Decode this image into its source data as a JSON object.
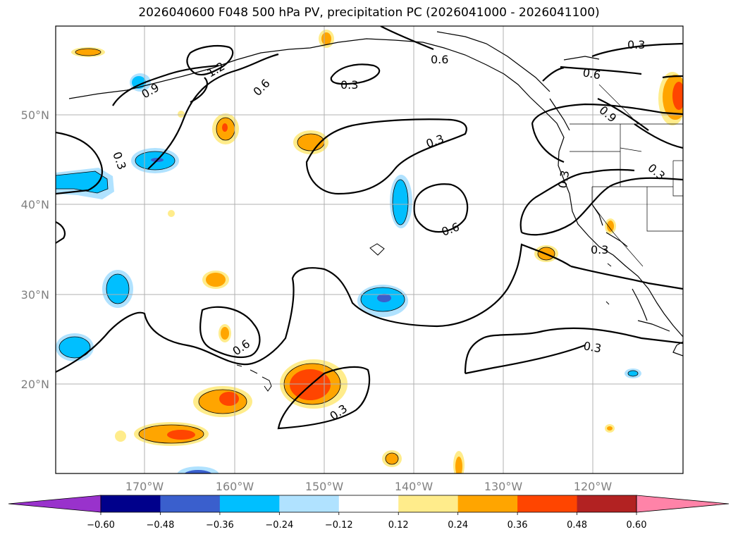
{
  "title": "2026040600 F048 500 hPa PV, precipitation PC (2026041000 - 2026041100)",
  "lon_labels": [
    "170°W",
    "160°W",
    "150°W",
    "140°W",
    "130°W",
    "120°W"
  ],
  "lat_labels": [
    "50°N",
    "40°N",
    "30°N",
    "20°N"
  ],
  "contour_labels": [
    "0.3",
    "0.6",
    "0.9",
    "1.2"
  ],
  "colorbar": {
    "ticks": [
      "−0.60",
      "−0.48",
      "−0.36",
      "−0.24",
      "−0.12",
      "0.12",
      "0.24",
      "0.36",
      "0.48",
      "0.60"
    ],
    "colors": [
      "#9932cc",
      "#00008b",
      "#3a5fcd",
      "#00bfff",
      "#b0e2ff",
      "#ffffff",
      "#ffec8b",
      "#ffa500",
      "#ff4500",
      "#b22222",
      "#ff83a8"
    ]
  }
}
